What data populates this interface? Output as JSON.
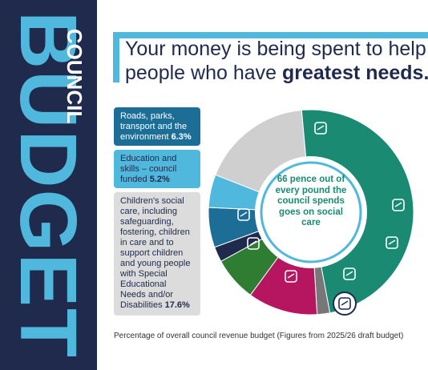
{
  "sidebar": {
    "word_council": "COUNCIL",
    "word_budget": "BUDGET"
  },
  "title": {
    "line1": "Your money is being spent to help",
    "line2_pre": "people who have ",
    "line2_bold": "greatest needs."
  },
  "cards": [
    {
      "text": "Roads, parks, transport and the environment ",
      "value": "6.3%",
      "color": "#1c6e97"
    },
    {
      "text": "Education and skills – council funded ",
      "value": "5.2%",
      "color": "#4fb8dc"
    },
    {
      "text": "Children's social care, including safeguarding, fostering, children in care and to support children and young people with Special Educational Needs and/or Disabilities ",
      "value": "17.6%",
      "color": "#dcdcdc"
    }
  ],
  "center": {
    "text": "66 pence out of every pound the council spends goes on social care"
  },
  "footnote": "Percentage of overall council revenue budget (Figures from 2025/26 draft budget)",
  "chart_data": {
    "type": "pie",
    "note": "donut chart; only three segments labelled with values",
    "segments": [
      {
        "label": "Roads, parks, transport and the environment",
        "value": 6.3,
        "color": "#1c6e97"
      },
      {
        "label": "Education and skills – council funded",
        "value": 5.2,
        "color": "#4fb8dc"
      },
      {
        "label": "Children's social care",
        "value": 17.6,
        "color": "#cfcfcf"
      },
      {
        "label": "",
        "value": 48.5,
        "color": "#1a8a73"
      },
      {
        "label": "",
        "value": 2.0,
        "color": "#777777"
      },
      {
        "label": "",
        "value": 11.0,
        "color": "#b5165f"
      },
      {
        "label": "",
        "value": 7.0,
        "color": "#2e7d32"
      },
      {
        "label": "",
        "value": 2.4,
        "color": "#1f2a4d"
      }
    ],
    "icons": [
      "heart-hand-icon",
      "books-icon",
      "graph-icon",
      "recycle-basket-icon",
      "city-icon",
      "family-icon",
      "graduate-icon",
      "road-icon"
    ]
  }
}
